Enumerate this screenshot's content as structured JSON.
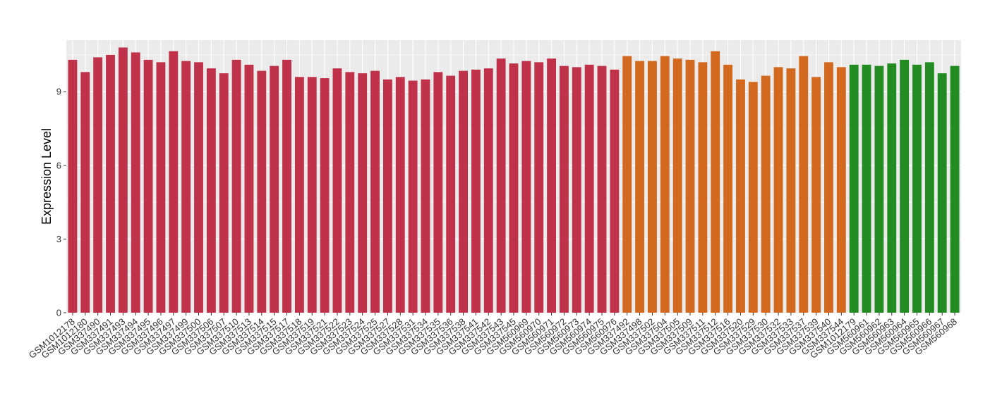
{
  "chart_data": {
    "type": "bar",
    "ylabel": "Expression Level",
    "xlabel": "",
    "ylim": [
      0,
      11.1
    ],
    "yticks": [
      0,
      3,
      6,
      9
    ],
    "grid": true,
    "panel_background": "#EBEBEB",
    "grid_color": "#FFFFFF",
    "series_colors": [
      "#C0314A",
      "#D2691E",
      "#228B22"
    ],
    "categories": [
      "GSM1012178",
      "GSM1012180",
      "GSM337490",
      "GSM337491",
      "GSM337493",
      "GSM337494",
      "GSM337495",
      "GSM337496",
      "GSM337497",
      "GSM337499",
      "GSM337500",
      "GSM337506",
      "GSM337507",
      "GSM337510",
      "GSM337513",
      "GSM337514",
      "GSM337515",
      "GSM337517",
      "GSM337518",
      "GSM337519",
      "GSM337521",
      "GSM337522",
      "GSM337523",
      "GSM337524",
      "GSM337525",
      "GSM337527",
      "GSM337528",
      "GSM337531",
      "GSM337534",
      "GSM337535",
      "GSM337536",
      "GSM337538",
      "GSM337541",
      "GSM337542",
      "GSM337543",
      "GSM337545",
      "GSM560969",
      "GSM560970",
      "GSM560971",
      "GSM560972",
      "GSM560973",
      "GSM560974",
      "GSM560975",
      "GSM560976",
      "GSM337492",
      "GSM337498",
      "GSM337502",
      "GSM337504",
      "GSM337505",
      "GSM337509",
      "GSM337511",
      "GSM337512",
      "GSM337516",
      "GSM337520",
      "GSM337529",
      "GSM337530",
      "GSM337532",
      "GSM337533",
      "GSM337537",
      "GSM337539",
      "GSM337540",
      "GSM337544",
      "GSM1012179",
      "GSM560961",
      "GSM560962",
      "GSM560963",
      "GSM560964",
      "GSM560965",
      "GSM560966",
      "GSM560967",
      "GSM560968"
    ],
    "values": [
      10.3,
      9.8,
      10.4,
      10.5,
      10.8,
      10.6,
      10.3,
      10.2,
      10.65,
      10.25,
      10.2,
      9.95,
      9.75,
      10.3,
      10.1,
      9.85,
      10.05,
      10.3,
      9.6,
      9.6,
      9.55,
      9.95,
      9.8,
      9.75,
      9.85,
      9.5,
      9.6,
      9.45,
      9.5,
      9.8,
      9.65,
      9.85,
      9.9,
      9.95,
      10.35,
      10.15,
      10.25,
      10.2,
      10.35,
      10.05,
      10.0,
      10.1,
      10.05,
      9.9,
      10.45,
      10.25,
      10.25,
      10.45,
      10.35,
      10.3,
      10.2,
      10.65,
      10.1,
      9.5,
      9.4,
      9.65,
      10.0,
      9.95,
      10.45,
      9.6,
      10.2,
      10.0,
      10.1,
      10.1,
      10.05,
      10.15,
      10.3,
      10.1,
      10.2,
      9.75,
      10.05
    ],
    "groups": [
      0,
      0,
      0,
      0,
      0,
      0,
      0,
      0,
      0,
      0,
      0,
      0,
      0,
      0,
      0,
      0,
      0,
      0,
      0,
      0,
      0,
      0,
      0,
      0,
      0,
      0,
      0,
      0,
      0,
      0,
      0,
      0,
      0,
      0,
      0,
      0,
      0,
      0,
      0,
      0,
      0,
      0,
      0,
      0,
      1,
      1,
      1,
      1,
      1,
      1,
      1,
      1,
      1,
      1,
      1,
      1,
      1,
      1,
      1,
      1,
      1,
      1,
      2,
      2,
      2,
      2,
      2,
      2,
      2,
      2,
      2
    ]
  }
}
